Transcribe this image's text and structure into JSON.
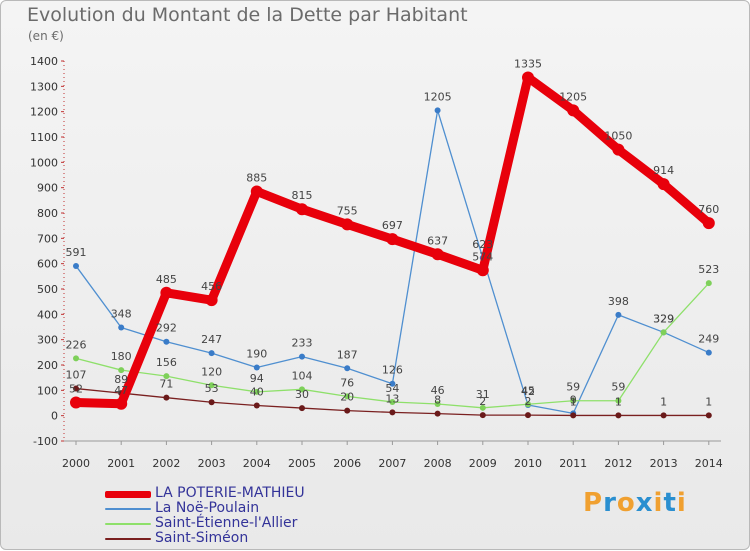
{
  "title": "Evolution du Montant de la Dette par Habitant",
  "subtitle": "(en €)",
  "logo": {
    "text": "Proxiti",
    "colors": [
      "#f0a030",
      "#2a8fd0",
      "#f0a030",
      "#2a8fd0",
      "#f0a030",
      "#2a8fd0",
      "#f0a030"
    ]
  },
  "chart_data": {
    "type": "line",
    "title": "Evolution du Montant de la Dette par Habitant",
    "ylabel": "(en €)",
    "x": [
      "2000",
      "2001",
      "2002",
      "2003",
      "2004",
      "2005",
      "2006",
      "2007",
      "2008",
      "2009",
      "2010",
      "2011",
      "2012",
      "2013",
      "2014"
    ],
    "ylim": [
      -100,
      1400
    ],
    "yticks": [
      -100,
      0,
      100,
      200,
      300,
      400,
      500,
      600,
      700,
      800,
      900,
      1000,
      1100,
      1200,
      1300,
      1400
    ],
    "grid": false,
    "legend_position": "bottom-left",
    "series": [
      {
        "name": "LA POTERIE-MATHIEU",
        "color": "#e8000b",
        "values": [
          52,
          47,
          485,
          456,
          885,
          815,
          755,
          697,
          637,
          574,
          1335,
          1205,
          1050,
          914,
          760
        ]
      },
      {
        "name": "La Noë-Poulain",
        "color": "#4f8fd0",
        "values": [
          591,
          348,
          292,
          247,
          190,
          233,
          187,
          126,
          1205,
          623,
          42,
          9,
          398,
          329,
          249
        ]
      },
      {
        "name": "Saint-Étienne-l'Allier",
        "color": "#8ee06a",
        "values": [
          226,
          180,
          156,
          120,
          94,
          104,
          76,
          54,
          46,
          31,
          45,
          59,
          59,
          329,
          523
        ]
      },
      {
        "name": "Saint-Siméon",
        "color": "#7a2020",
        "values": [
          107,
          89,
          71,
          53,
          40,
          30,
          20,
          13,
          8,
          2,
          2,
          1,
          1,
          1,
          1
        ]
      }
    ]
  }
}
